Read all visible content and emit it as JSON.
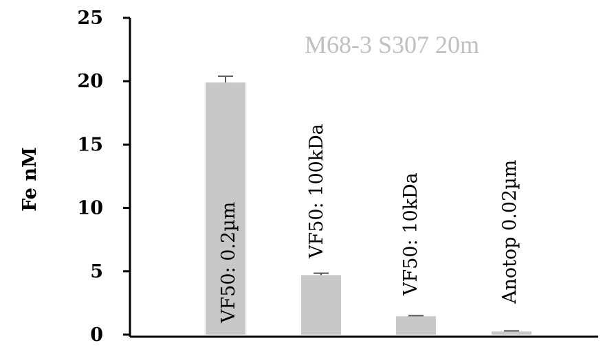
{
  "chart_data": {
    "type": "bar",
    "title": "",
    "annotation": "M68-3 S307 20m",
    "xlabel": "",
    "ylabel": "Fe nM",
    "ylim": [
      0,
      25
    ],
    "yticks": [
      0,
      5,
      10,
      15,
      20,
      25
    ],
    "grid": false,
    "legend": "none",
    "categories": [
      "VF50: 0.2µm",
      "VF50: 100kDa",
      "VF50: 10kDa",
      "Anotop 0.02µm"
    ],
    "values": [
      19.9,
      4.7,
      1.45,
      0.25
    ],
    "errors": [
      0.5,
      0.15,
      0.05,
      0.05
    ],
    "colors": {
      "bar": "#c8c8c8",
      "axis": "#000000",
      "annotation": "#c0c0c0"
    }
  }
}
